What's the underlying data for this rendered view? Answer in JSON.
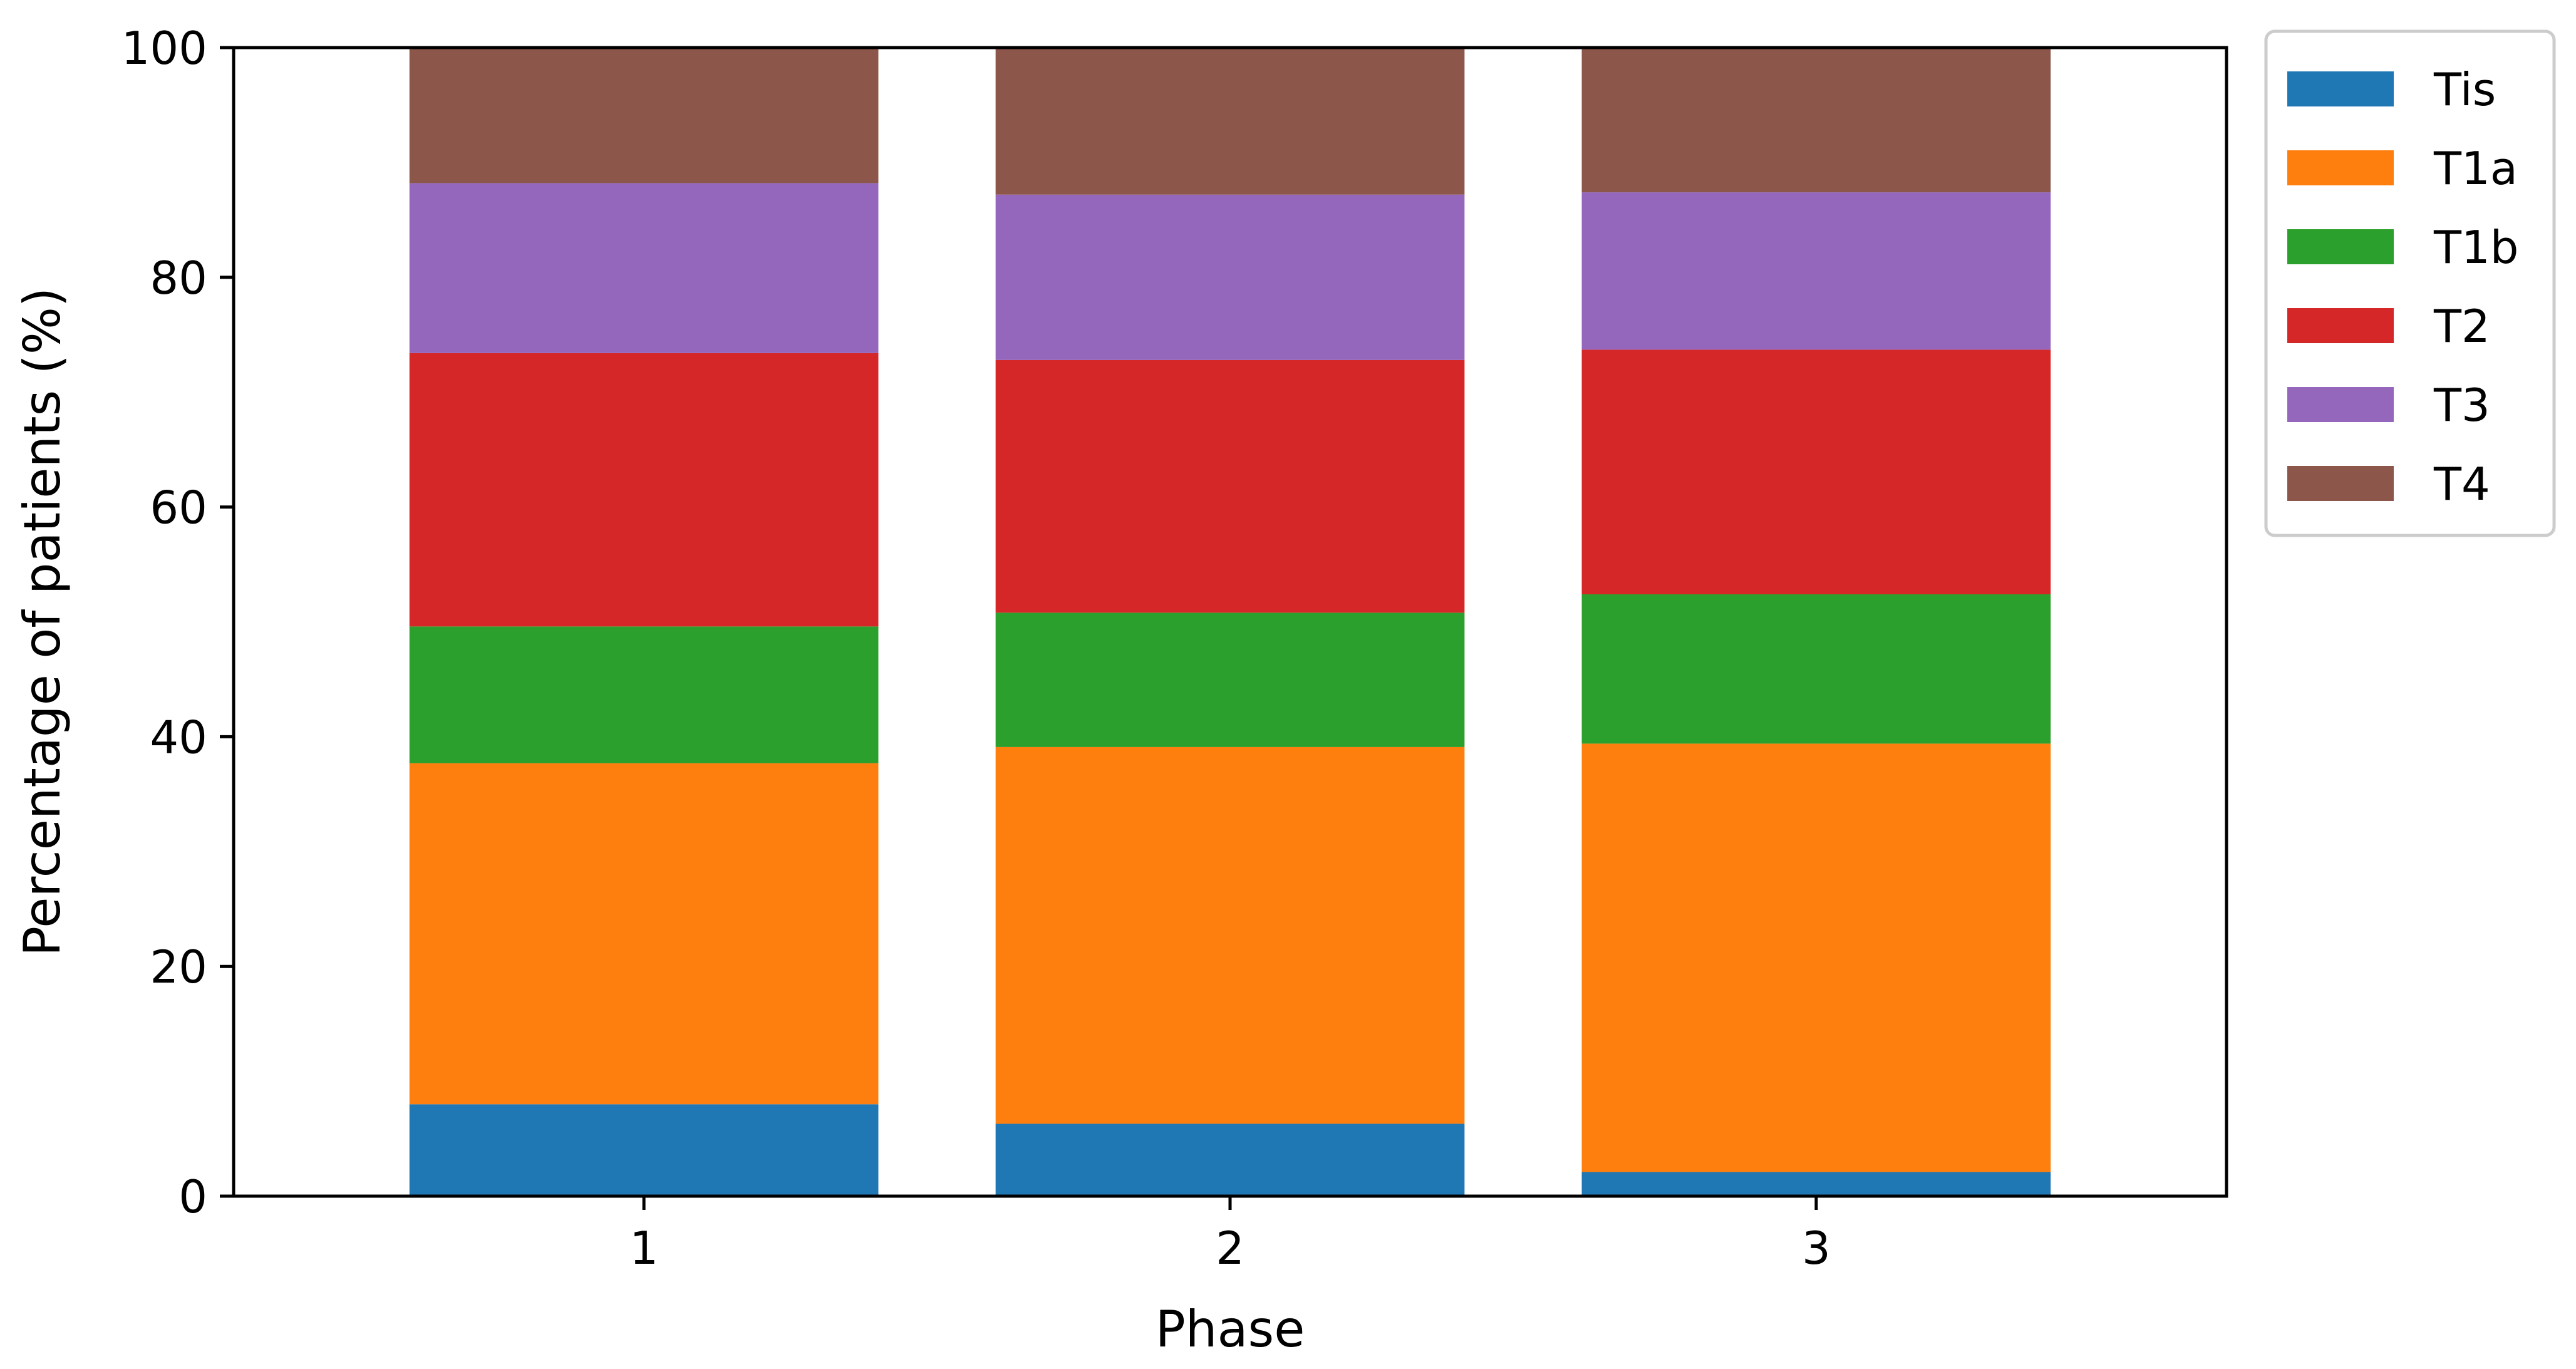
{
  "chart_data": {
    "type": "bar",
    "stacked": true,
    "title": "",
    "xlabel": "Phase",
    "ylabel": "Percentage of patients (%)",
    "categories": [
      "1",
      "2",
      "3"
    ],
    "ylim": [
      0,
      100
    ],
    "yticks": [
      0,
      20,
      40,
      60,
      80,
      100
    ],
    "grid": false,
    "legend_position": "outside-upper-right",
    "series": [
      {
        "name": "Tis",
        "color": "#1f77b4",
        "values": [
          8.0,
          6.3,
          2.1
        ]
      },
      {
        "name": "T1a",
        "color": "#ff7f0e",
        "values": [
          29.7,
          32.8,
          37.3
        ]
      },
      {
        "name": "T1b",
        "color": "#2ca02c",
        "values": [
          11.9,
          11.7,
          13.0
        ]
      },
      {
        "name": "T2",
        "color": "#d62728",
        "values": [
          23.8,
          22.0,
          21.3
        ]
      },
      {
        "name": "T3",
        "color": "#9467bd",
        "values": [
          14.8,
          14.4,
          13.7
        ]
      },
      {
        "name": "T4",
        "color": "#8c564b",
        "values": [
          11.8,
          12.8,
          12.6
        ]
      }
    ]
  }
}
